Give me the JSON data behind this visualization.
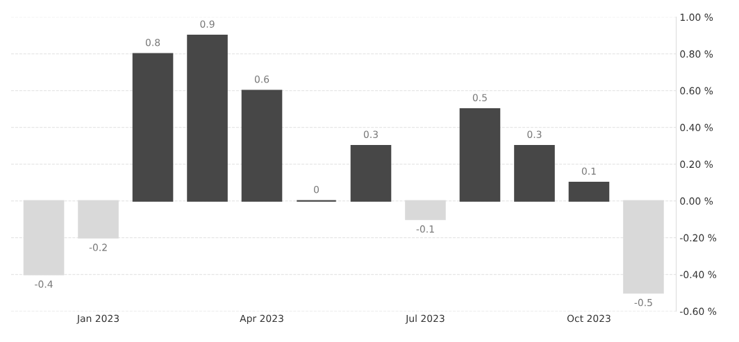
{
  "chart_data": {
    "type": "bar",
    "categories": [
      null,
      "Jan 2023",
      null,
      null,
      "Apr 2023",
      null,
      null,
      "Jul 2023",
      null,
      null,
      "Oct 2023",
      null
    ],
    "values": [
      -0.4,
      -0.2,
      0.8,
      0.9,
      0.6,
      0,
      0.3,
      -0.1,
      0.5,
      0.3,
      0.1,
      -0.5
    ],
    "colors": [
      "#d9d9d9",
      "#d9d9d9",
      "#474747",
      "#474747",
      "#474747",
      "#474747",
      "#474747",
      "#d9d9d9",
      "#474747",
      "#474747",
      "#474747",
      "#d9d9d9"
    ],
    "value_labels": [
      "-0.4",
      "-0.2",
      "0.8",
      "0.9",
      "0.6",
      "0",
      "0.3",
      "-0.1",
      "0.5",
      "0.3",
      "0.1",
      "-0.5"
    ],
    "ylim": [
      -0.6,
      1.0
    ],
    "yticks": [
      {
        "value": -0.6,
        "label": "-0.60 %"
      },
      {
        "value": -0.4,
        "label": "-0.40 %"
      },
      {
        "value": -0.2,
        "label": "-0.20 %"
      },
      {
        "value": 0,
        "label": "0.00 %"
      },
      {
        "value": 0.2,
        "label": "0.20 %"
      },
      {
        "value": 0.4,
        "label": "0.40 %"
      },
      {
        "value": 0.6,
        "label": "0.60 %"
      },
      {
        "value": 0.8,
        "label": "0.80 %"
      },
      {
        "value": 1.0,
        "label": "1.00 %"
      }
    ],
    "grid": "y"
  }
}
